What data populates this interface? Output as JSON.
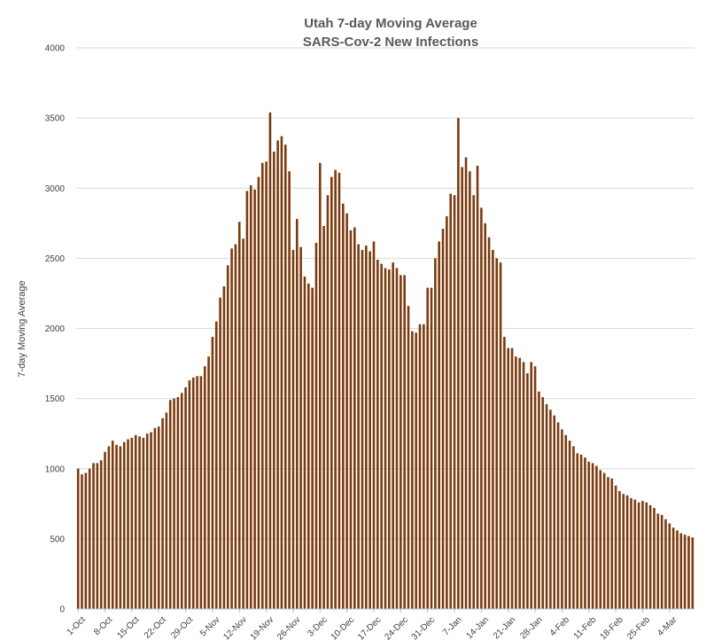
{
  "chart_data": {
    "type": "bar",
    "title": "Utah 7-day Moving Average",
    "subtitle": "SARS-Cov-2 New Infections",
    "xlabel": "",
    "ylabel": "7-day Moving Average",
    "ylim": [
      0,
      4000
    ],
    "yticks": [
      "0",
      "500",
      "1000",
      "1500",
      "2000",
      "2500",
      "3000",
      "3500",
      "4000"
    ],
    "grid": true,
    "bar_color": "#7a3b0f",
    "x_tick_labels": [
      "1-Oct",
      "8-Oct",
      "15-Oct",
      "22-Oct",
      "29-Oct",
      "5-Nov",
      "12-Nov",
      "19-Nov",
      "26-Nov",
      "3-Dec",
      "10-Dec",
      "17-Dec",
      "24-Dec",
      "31-Dec",
      "7-Jan",
      "14-Jan",
      "21-Jan",
      "28-Jan",
      "4-Feb",
      "11-Feb",
      "18-Feb",
      "25-Feb",
      "4-Mar"
    ],
    "x_start": "1-Oct",
    "values": [
      1000,
      960,
      970,
      1000,
      1040,
      1040,
      1060,
      1120,
      1160,
      1200,
      1170,
      1160,
      1190,
      1210,
      1220,
      1240,
      1230,
      1220,
      1250,
      1260,
      1290,
      1300,
      1360,
      1400,
      1490,
      1500,
      1510,
      1540,
      1580,
      1630,
      1650,
      1660,
      1660,
      1730,
      1800,
      1940,
      2050,
      2220,
      2300,
      2450,
      2570,
      2600,
      2760,
      2640,
      2980,
      3020,
      2990,
      3080,
      3180,
      3190,
      3540,
      3260,
      3340,
      3370,
      3310,
      3120,
      2560,
      2780,
      2580,
      2370,
      2320,
      2290,
      2610,
      3180,
      2730,
      2950,
      3080,
      3130,
      3110,
      2890,
      2820,
      2700,
      2720,
      2600,
      2560,
      2590,
      2550,
      2620,
      2490,
      2460,
      2430,
      2420,
      2470,
      2430,
      2380,
      2380,
      2160,
      1980,
      1970,
      2030,
      2030,
      2290,
      2290,
      2500,
      2620,
      2710,
      2800,
      2960,
      2950,
      3500,
      3150,
      3220,
      3120,
      2950,
      3160,
      2860,
      2750,
      2650,
      2560,
      2500,
      2470,
      1940,
      1860,
      1860,
      1800,
      1790,
      1760,
      1680,
      1760,
      1730,
      1550,
      1510,
      1460,
      1420,
      1380,
      1330,
      1280,
      1240,
      1200,
      1160,
      1110,
      1100,
      1080,
      1050,
      1040,
      1020,
      990,
      970,
      940,
      930,
      880,
      840,
      820,
      810,
      790,
      780,
      760,
      770,
      760,
      740,
      720,
      680,
      670,
      640,
      610,
      580,
      560,
      540,
      530,
      520,
      510
    ]
  }
}
